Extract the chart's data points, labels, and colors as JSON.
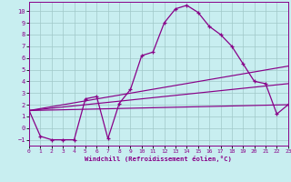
{
  "xlabel": "Windchill (Refroidissement éolien,°C)",
  "bg_color": "#c8eef0",
  "grid_color": "#a0c8c8",
  "line_color": "#880088",
  "xlim": [
    0,
    23
  ],
  "ylim": [
    -1.5,
    10.8
  ],
  "xticks": [
    0,
    1,
    2,
    3,
    4,
    5,
    6,
    7,
    8,
    9,
    10,
    11,
    12,
    13,
    14,
    15,
    16,
    17,
    18,
    19,
    20,
    21,
    22,
    23
  ],
  "yticks": [
    -1,
    0,
    1,
    2,
    3,
    4,
    5,
    6,
    7,
    8,
    9,
    10
  ],
  "main_x": [
    0,
    1,
    2,
    3,
    4,
    5,
    6,
    7,
    8,
    9,
    10,
    11,
    12,
    13,
    14,
    15,
    16,
    17,
    18,
    19,
    20,
    21,
    22,
    23
  ],
  "main_y": [
    1.5,
    -0.7,
    -1.0,
    -1.0,
    -1.0,
    2.5,
    2.7,
    -0.9,
    2.1,
    3.3,
    6.2,
    6.5,
    9.0,
    10.2,
    10.5,
    9.9,
    8.7,
    8.0,
    7.0,
    5.5,
    4.0,
    3.8,
    1.2,
    2.0
  ],
  "trend1_x": [
    0,
    23
  ],
  "trend1_y": [
    1.5,
    5.3
  ],
  "trend2_x": [
    0,
    23
  ],
  "trend2_y": [
    1.5,
    3.8
  ],
  "trend3_x": [
    0,
    23
  ],
  "trend3_y": [
    1.5,
    2.0
  ]
}
